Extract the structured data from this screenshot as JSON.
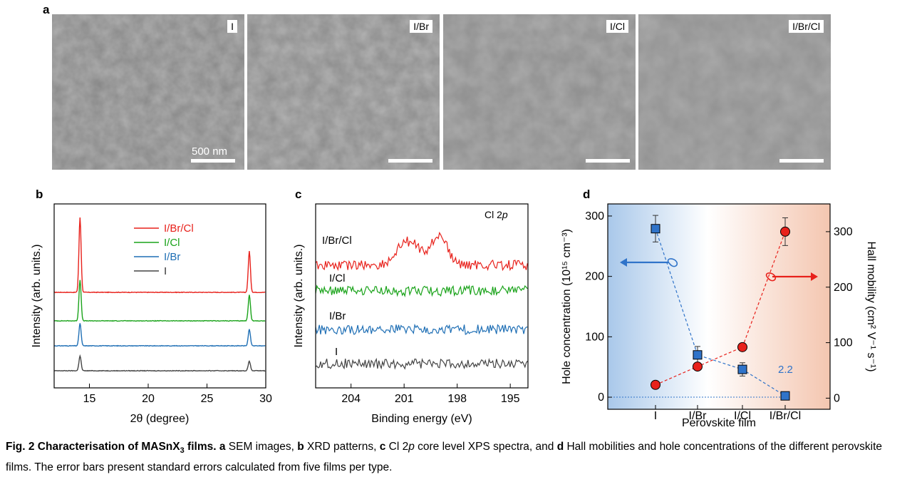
{
  "panel_a": {
    "label": "a",
    "images": [
      {
        "tag": "I",
        "scalebar": "500 nm"
      },
      {
        "tag": "I/Br",
        "scalebar": ""
      },
      {
        "tag": "I/Cl",
        "scalebar": ""
      },
      {
        "tag": "I/Br/Cl",
        "scalebar": ""
      }
    ]
  },
  "chart_data": [
    {
      "panel": "b",
      "type": "line",
      "xlabel": "2θ (degree)",
      "ylabel": "Intensity (arb. units.)",
      "xlim": [
        12,
        30
      ],
      "xticks": [
        "15",
        "20",
        "25",
        "30"
      ],
      "legend": [
        "I/Br/Cl",
        "I/Cl",
        "I/Br",
        "I"
      ],
      "legend_position": "top-center",
      "peaks_deg": [
        14.2,
        28.6
      ],
      "series": [
        {
          "name": "I/Br/Cl",
          "color": "#e8211b",
          "peak_heights": [
            1.0,
            0.55
          ]
        },
        {
          "name": "I/Cl",
          "color": "#1aa31a",
          "peak_heights": [
            0.55,
            0.35
          ]
        },
        {
          "name": "I/Br",
          "color": "#1f6fb5",
          "peak_heights": [
            0.3,
            0.22
          ]
        },
        {
          "name": "I",
          "color": "#444444",
          "peak_heights": [
            0.2,
            0.13
          ]
        }
      ]
    },
    {
      "panel": "c",
      "type": "line",
      "title": "Cl 2p",
      "xlabel": "Binding energy (eV)",
      "ylabel": "Intensity (arb. units.)",
      "xlim": [
        206,
        194
      ],
      "xticks": [
        "204",
        "201",
        "198",
        "195"
      ],
      "peaks_eV": [
        200.5,
        199.0
      ],
      "series": [
        {
          "name": "I/Br/Cl",
          "color": "#e8211b"
        },
        {
          "name": "I/Cl",
          "color": "#1aa31a"
        },
        {
          "name": "I/Br",
          "color": "#1f6fb5"
        },
        {
          "name": "I",
          "color": "#444444"
        }
      ]
    },
    {
      "panel": "d",
      "type": "scatter",
      "xlabel": "Perovskite film",
      "categories": [
        "I",
        "I/Br",
        "I/Cl",
        "I/Br/Cl"
      ],
      "ylabel_left": "Hole concentration (10¹⁵ cm⁻³)",
      "ylabel_right": "Hall mobility (cm² V⁻¹ s⁻¹)",
      "ylim_left": [
        -20,
        320
      ],
      "ylim_right": [
        -20,
        350
      ],
      "yticks_left": [
        "0",
        "100",
        "200",
        "300"
      ],
      "yticks_right": [
        "0",
        "100",
        "200",
        "300"
      ],
      "series": [
        {
          "name": "Hole concentration",
          "axis": "left",
          "color": "#2f73c9",
          "marker": "square",
          "values": [
            279,
            70,
            46,
            2.2
          ],
          "errors": [
            22,
            14,
            11,
            3
          ]
        },
        {
          "name": "Hall mobility",
          "axis": "right",
          "color": "#e8211b",
          "marker": "circle",
          "values": [
            24,
            57,
            92,
            300
          ],
          "errors": [
            0,
            0,
            0,
            25
          ]
        }
      ],
      "annotation": "2.2"
    }
  ],
  "caption": {
    "bold": "Fig. 2 Characterisation of MASnX",
    "bold_sub": "3",
    "bold_end": " films.",
    "a_lbl": "a",
    "a_txt": " SEM images, ",
    "b_lbl": "b",
    "b_txt": " XRD patterns, ",
    "c_lbl": "c",
    "c_txt": " Cl 2",
    "c_ital": "p",
    "c_txt2": " core level XPS spectra, and ",
    "d_lbl": "d",
    "d_txt": " Hall mobilities and hole concentrations of the different perovskite films. The error bars present standard errors calculated from five films per type."
  }
}
